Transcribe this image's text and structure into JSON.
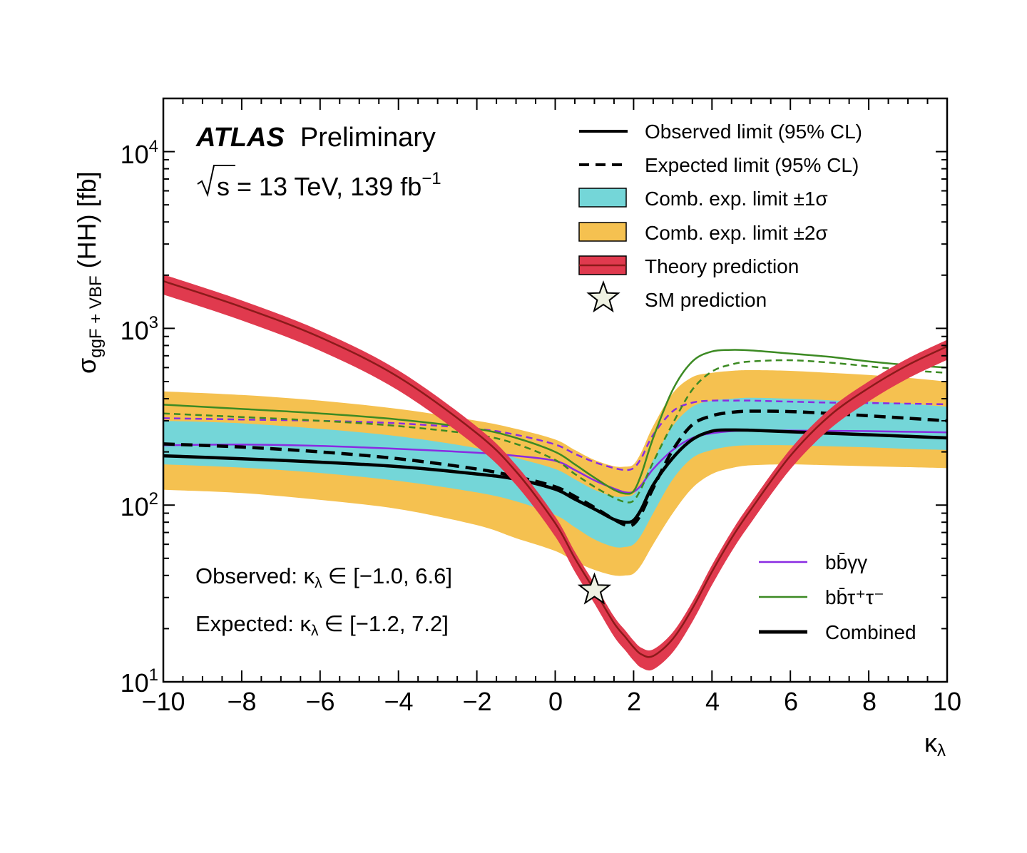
{
  "chart_data": {
    "type": "line",
    "experiment": "ATLAS",
    "status": "Preliminary",
    "energy_label": "s",
    "energy_rest": "= 13 TeV, 139 fb",
    "lumi_exp": "−1",
    "ylabel_sym": "σ",
    "ylabel_sub": "ggF + VBF",
    "ylabel_rest": "(HH) [fb]",
    "xlabel_sym": "κ",
    "xlabel_sub": "λ",
    "x_range": [
      -10,
      10
    ],
    "y_range": [
      10,
      20000
    ],
    "y_scale": "log",
    "x_ticks": [
      "−10",
      "−8",
      "−6",
      "−4",
      "−2",
      "0",
      "2",
      "4",
      "6",
      "8",
      "10"
    ],
    "y_ticks": [
      {
        "base": "10",
        "exp": "1"
      },
      {
        "base": "10",
        "exp": "2"
      },
      {
        "base": "10",
        "exp": "3"
      },
      {
        "base": "10",
        "exp": "4"
      }
    ],
    "annotations": {
      "observed_label": "Observed: κ",
      "observed_range": "∈ [−1.0, 6.6]",
      "expected_label": "Expected: κ",
      "expected_range": "∈ [−1.2, 7.2]",
      "sub": "λ"
    },
    "legend_main": [
      {
        "key": "observed",
        "label": "Observed limit (95% CL)"
      },
      {
        "key": "expected",
        "label": "Expected limit (95% CL)"
      },
      {
        "key": "band1",
        "label": "Comb. exp. limit ±1σ"
      },
      {
        "key": "band2",
        "label": "Comb. exp. limit ±2σ"
      },
      {
        "key": "theory",
        "label": "Theory prediction"
      },
      {
        "key": "sm",
        "label": "SM prediction"
      }
    ],
    "legend_channels": [
      {
        "key": "bbyy",
        "label": "bb̄γγ"
      },
      {
        "key": "bbtautau",
        "label": "bb̄τ⁺τ⁻"
      },
      {
        "key": "combined",
        "label": "Combined"
      }
    ],
    "colors": {
      "band1": "#74d6d8",
      "band2": "#f5c150",
      "theory_band": "#e03a4e",
      "theory_line": "#8b1a1a",
      "bbyy": "#8a2be2",
      "bbtautau": "#3c8a23",
      "combined": "#000000",
      "star_fill": "#eef1e2"
    },
    "x": [
      -10,
      -8,
      -6,
      -4,
      -2,
      -1,
      0,
      0.5,
      1,
      1.5,
      1.8,
      2,
      2.2,
      2.5,
      3,
      3.5,
      4,
      4.5,
      5,
      6,
      7,
      8,
      9,
      10
    ],
    "series": [
      {
        "key": "band2_hi",
        "values": [
          440,
          420,
          390,
          350,
          300,
          270,
          235,
          205,
          180,
          166,
          165,
          170,
          200,
          280,
          430,
          530,
          560,
          575,
          580,
          575,
          560,
          545,
          525,
          500
        ]
      },
      {
        "key": "band2_lo",
        "values": [
          122,
          117,
          107,
          95,
          77,
          65,
          55,
          48,
          43,
          40,
          40,
          41,
          46,
          60,
          90,
          125,
          150,
          162,
          168,
          170,
          168,
          166,
          164,
          162
        ]
      },
      {
        "key": "band1_hi",
        "values": [
          300,
          290,
          270,
          245,
          210,
          185,
          160,
          140,
          122,
          112,
          112,
          115,
          132,
          180,
          280,
          360,
          390,
          400,
          405,
          400,
          392,
          385,
          375,
          360
        ]
      },
      {
        "key": "band1_lo",
        "values": [
          170,
          163,
          152,
          137,
          118,
          105,
          88,
          75,
          64,
          58,
          58,
          60,
          68,
          90,
          140,
          185,
          205,
          215,
          218,
          218,
          215,
          212,
          208,
          205
        ]
      },
      {
        "key": "observed",
        "values": [
          190,
          183,
          175,
          165,
          150,
          140,
          123,
          108,
          95,
          83,
          80,
          82,
          95,
          130,
          185,
          235,
          262,
          266,
          265,
          260,
          255,
          250,
          245,
          240
        ]
      },
      {
        "key": "expected",
        "values": [
          222,
          213,
          200,
          183,
          160,
          145,
          127,
          112,
          97,
          83,
          77,
          78,
          90,
          125,
          205,
          285,
          320,
          335,
          340,
          338,
          330,
          320,
          310,
          300
        ]
      },
      {
        "key": "bbyy_obs",
        "values": [
          218,
          220,
          216,
          208,
          198,
          190,
          178,
          158,
          138,
          124,
          118,
          119,
          130,
          160,
          205,
          240,
          255,
          262,
          264,
          264,
          263,
          262,
          260,
          258
        ]
      },
      {
        "key": "bbyy_exp",
        "values": [
          310,
          305,
          300,
          290,
          270,
          250,
          220,
          195,
          175,
          162,
          158,
          162,
          185,
          250,
          340,
          380,
          390,
          390,
          390,
          385,
          380,
          378,
          375,
          372
        ]
      },
      {
        "key": "bbtt_obs",
        "values": [
          370,
          350,
          330,
          305,
          270,
          240,
          200,
          170,
          143,
          122,
          116,
          120,
          150,
          240,
          450,
          650,
          740,
          755,
          750,
          720,
          690,
          650,
          620,
          600
        ]
      },
      {
        "key": "bbtt_exp",
        "values": [
          330,
          315,
          300,
          280,
          250,
          222,
          180,
          150,
          127,
          110,
          104,
          106,
          125,
          175,
          290,
          450,
          570,
          625,
          650,
          660,
          640,
          610,
          580,
          560
        ]
      },
      {
        "key": "theory",
        "values": [
          1850,
          1320,
          890,
          530,
          255,
          155,
          79,
          50,
          33,
          21.5,
          17.8,
          15.7,
          14.3,
          14.0,
          17.5,
          26,
          42,
          65,
          95,
          190,
          320,
          460,
          620,
          790
        ]
      }
    ],
    "sm_point": {
      "x": 1,
      "y": 33
    }
  }
}
